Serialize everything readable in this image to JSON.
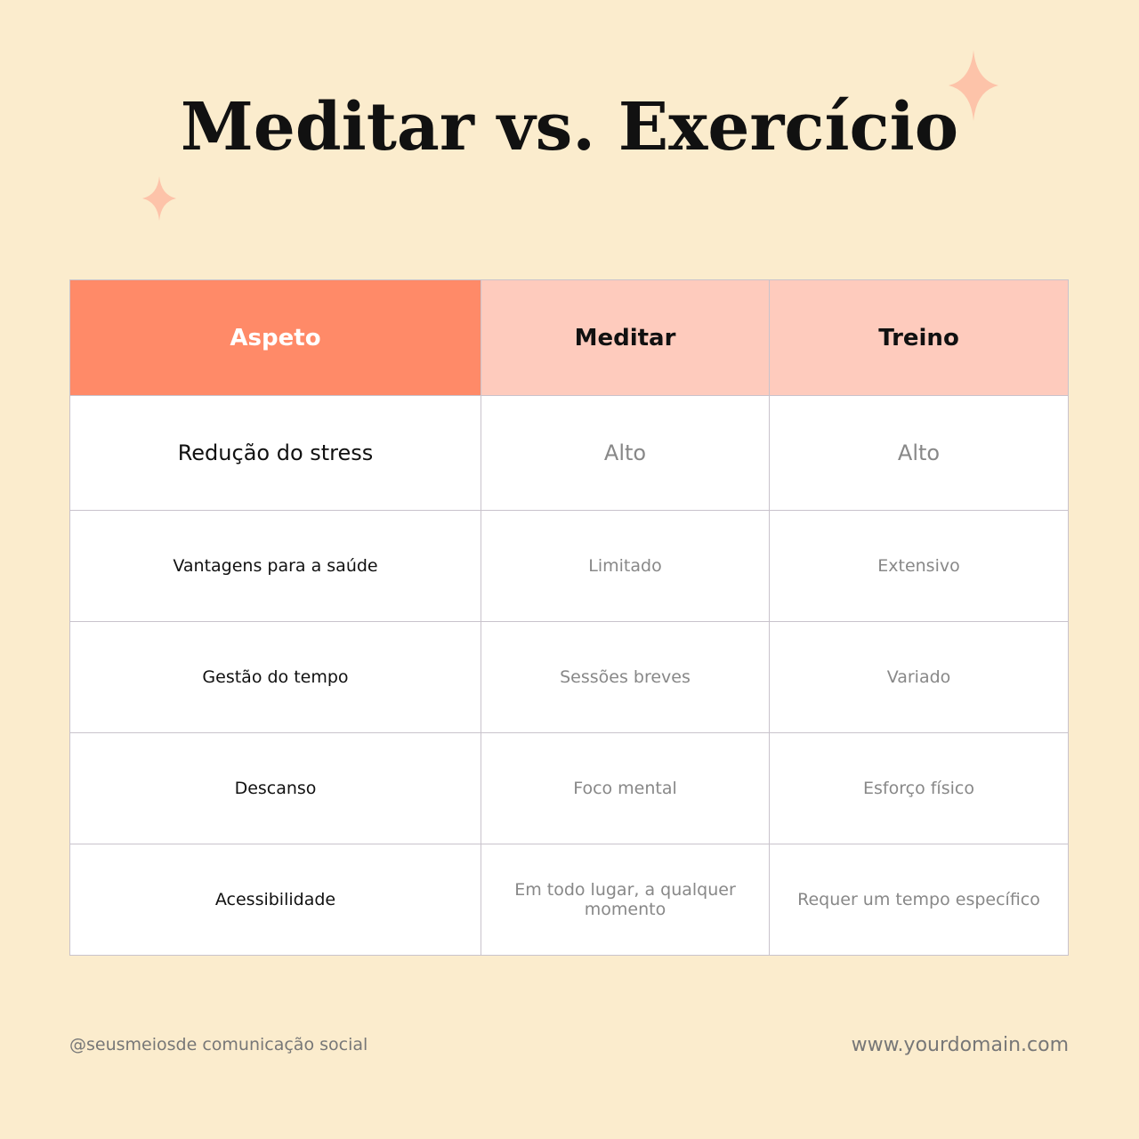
{
  "header": {
    "title": "Meditar vs. Exercício"
  },
  "table": {
    "columns": [
      "Aspeto",
      "Meditar",
      "Treino"
    ],
    "rows": [
      [
        "Redução do stress",
        "Alto",
        "Alto"
      ],
      [
        "Vantagens para a saúde",
        "Limitado",
        "Extensivo"
      ],
      [
        "Gestão do tempo",
        "Sessões breves",
        "Variado"
      ],
      [
        "Descanso",
        "Foco mental",
        "Esforço físico"
      ],
      [
        "Acessibilidade",
        "Em todo lugar, a qualquer momento",
        "Requer um tempo específico"
      ]
    ]
  },
  "footer": {
    "handle": "@seusmeiosde comunicação social",
    "website": "www.yourdomain.com"
  }
}
